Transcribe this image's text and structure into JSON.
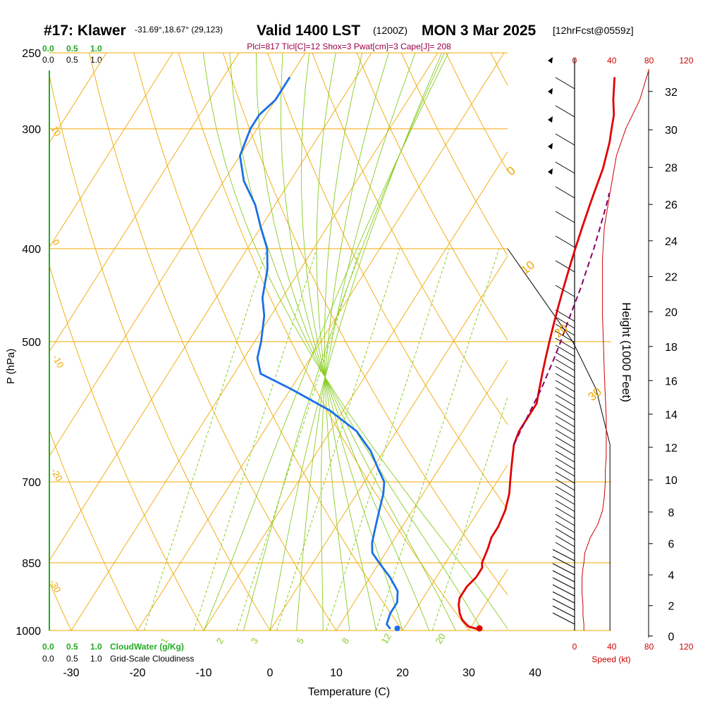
{
  "header": {
    "station": "#17: Klawer",
    "coords": "-31.69°,18.67° (29,123)",
    "valid": "Valid 1400 LST",
    "utc": "(1200Z)",
    "date": "MON 3 Mar 2025",
    "forecast": "[12hrFcst@0559z]",
    "indices": "Plcl=817 Tlcl[C]=12 Shox=3 Pwat[cm]=3 Cape[J]= 208"
  },
  "axes": {
    "xlabel": "Temperature (C)",
    "ylabel": "P (hPa)",
    "height_label": "Height (1000 Feet)",
    "speed_label": "Speed (kt)",
    "cloudwater_label": "CloudWater (g/Kg)",
    "cloudiness_label": "Grid-Scale Cloudiness",
    "scale_ticks": [
      "0.0",
      "0.5",
      "1.0"
    ],
    "speed_ticks": [
      "0",
      "40",
      "80",
      "120"
    ],
    "x_tick_labels": [
      "-30",
      "-20",
      "-10",
      "0",
      "10",
      "20",
      "30",
      "40"
    ],
    "p_tick_labels": [
      "250",
      "300",
      "400",
      "500",
      "700",
      "850",
      "1000"
    ],
    "height_tick_labels": [
      "0",
      "2",
      "4",
      "6",
      "8",
      "10",
      "12",
      "14",
      "16",
      "18",
      "20",
      "22",
      "24",
      "26",
      "28",
      "30",
      "32"
    ],
    "mixing_ratio_labels": [
      "1",
      "2",
      "3",
      "5",
      "8",
      "12",
      "20"
    ],
    "dry_adiabat_labels": [
      "10",
      "0",
      "-10",
      "-20",
      "-30"
    ],
    "moist_adiabat_labels": [
      "0",
      "10",
      "20",
      "30"
    ]
  },
  "colors": {
    "temperature": "#e00000",
    "dewpoint": "#1a6fe8",
    "parcel": "#880066",
    "isotherm": "#f0a800",
    "mixing_ratio": "#88cc22",
    "green_scale": "#22aa22",
    "speed": "#cc0000"
  },
  "chart_data": {
    "type": "skew-t",
    "x_unit": "C",
    "y_unit": "hPa",
    "xlim": [
      -35,
      45
    ],
    "plim": [
      1000,
      250
    ],
    "isobars": [
      1000,
      850,
      700,
      500,
      400,
      300,
      250
    ],
    "temperature_profile": {
      "p": [
        996,
        990,
        975,
        960,
        940,
        925,
        900,
        880,
        860,
        850,
        820,
        800,
        780,
        750,
        720,
        700,
        680,
        660,
        640,
        620,
        600,
        580,
        560,
        540,
        520,
        500,
        480,
        460,
        440,
        420,
        400,
        380,
        360,
        350,
        330,
        310,
        300,
        290,
        280,
        265
      ],
      "t": [
        31,
        29.5,
        28,
        27,
        26,
        25.5,
        25.5,
        26,
        26,
        25.5,
        25,
        24.5,
        24.5,
        24,
        23,
        22,
        21,
        20,
        19,
        18.5,
        18.5,
        18.5,
        17.5,
        16.5,
        15.5,
        14.5,
        13.5,
        12.5,
        11.5,
        10.5,
        9.5,
        8.5,
        7.5,
        7,
        6,
        4.5,
        3.5,
        2.5,
        1,
        -1
      ]
    },
    "dewpoint_profile": {
      "p": [
        996,
        985,
        960,
        935,
        910,
        880,
        860,
        850,
        830,
        810,
        780,
        750,
        720,
        700,
        680,
        650,
        620,
        590,
        560,
        540,
        520,
        500,
        470,
        450,
        420,
        400,
        380,
        360,
        340,
        320,
        300,
        290,
        280,
        265
      ],
      "t": [
        18,
        17,
        16.5,
        16.5,
        15.5,
        13,
        11,
        10,
        8,
        7,
        6,
        5,
        4,
        3,
        1,
        -2,
        -6,
        -12,
        -20,
        -26,
        -28,
        -29,
        -31,
        -33,
        -35,
        -37,
        -40,
        -43,
        -47,
        -50,
        -51,
        -51,
        -50,
        -50
      ]
    },
    "parcel_profile": {
      "p": [
        640,
        620,
        600,
        580,
        560,
        540,
        520,
        500,
        480,
        460,
        440,
        420,
        400,
        380,
        360,
        350
      ],
      "t": [
        19,
        18.7,
        18.4,
        18.1,
        17.8,
        17.3,
        16.8,
        16.2,
        15.5,
        14.8,
        14.1,
        13.2,
        12.3,
        11.2,
        10,
        9.3
      ]
    },
    "surface_temperature": 31.6,
    "surface_dewpoint": 19.2,
    "wind_speed_profile": {
      "p": [
        1000,
        985,
        965,
        940,
        915,
        900,
        880,
        860,
        850,
        830,
        800,
        775,
        750,
        725,
        700,
        680,
        660,
        640,
        620,
        600,
        570,
        540,
        500,
        470,
        440,
        410,
        380,
        350,
        320,
        300,
        280,
        260
      ],
      "kt": [
        10,
        10,
        9,
        9,
        8,
        8,
        8,
        9,
        10,
        11,
        17,
        25,
        30,
        32,
        33,
        33,
        34,
        34,
        34,
        34,
        33,
        32,
        31,
        30,
        30,
        30,
        32,
        38,
        45,
        55,
        70,
        80
      ]
    },
    "hodograph_outline": {
      "p": [
        400,
        500,
        560,
        640,
        700,
        850,
        1000
      ],
      "kt_from_left_edge": [
        0,
        70,
        95,
        110,
        110,
        110,
        110
      ]
    }
  }
}
